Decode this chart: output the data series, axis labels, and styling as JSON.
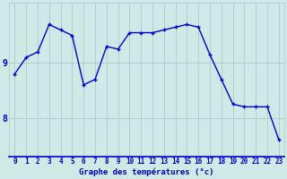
{
  "x": [
    0,
    1,
    2,
    3,
    4,
    5,
    6,
    7,
    8,
    9,
    10,
    11,
    12,
    13,
    14,
    15,
    16,
    17,
    18,
    19,
    20,
    21,
    22,
    23
  ],
  "y": [
    8.8,
    9.1,
    9.2,
    9.7,
    9.6,
    9.5,
    8.6,
    8.7,
    9.3,
    9.25,
    9.55,
    9.55,
    9.55,
    9.6,
    9.65,
    9.7,
    9.65,
    9.15,
    8.7,
    8.25,
    8.2,
    8.2,
    8.2,
    7.6
  ],
  "line_color": "#0000cc",
  "marker": "+",
  "marker_size": 3,
  "line_width": 1.0,
  "bg_color": "#ceeae7",
  "grid_color": "#b0c8c8",
  "axis_color": "#0000cc",
  "xlabel": "Graphe des températures (°c)",
  "xlabel_fontsize": 6.5,
  "xtick_labels": [
    "0",
    "1",
    "2",
    "3",
    "4",
    "5",
    "6",
    "7",
    "8",
    "9",
    "10",
    "11",
    "12",
    "13",
    "14",
    "15",
    "16",
    "17",
    "18",
    "19",
    "20",
    "21",
    "22",
    "23"
  ],
  "ytick_values": [
    8,
    9
  ],
  "ylim": [
    7.3,
    10.1
  ],
  "xlim": [
    -0.5,
    23.5
  ],
  "ytick_fontsize": 7,
  "xtick_fontsize": 5.5
}
